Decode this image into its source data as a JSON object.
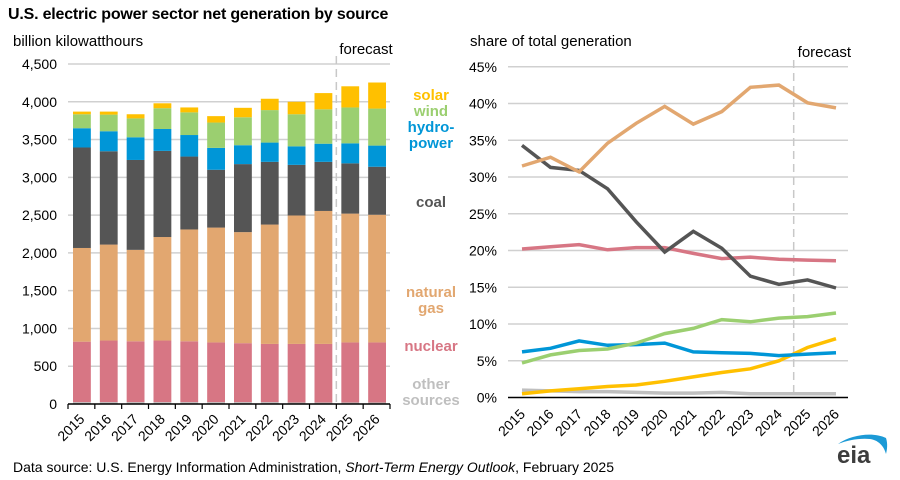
{
  "title": "U.S. electric power sector net generation by source",
  "footer": {
    "prefix": "Data source: U.S. Energy Information Administration, ",
    "italic": "Short-Term Energy Outlook",
    "suffix": ", February 2025"
  },
  "logo_text": "eia",
  "colors": {
    "solar": "#FFC000",
    "wind": "#9BCF70",
    "hydropower": "#0096D7",
    "coal": "#555555",
    "natural_gas": "#E2A770",
    "nuclear": "#D77684",
    "other": "#BFBFBF"
  },
  "legend": [
    {
      "key": "solar",
      "lines": [
        "solar"
      ]
    },
    {
      "key": "wind",
      "lines": [
        "wind"
      ]
    },
    {
      "key": "hydropower",
      "lines": [
        "hydro-",
        "power"
      ]
    },
    {
      "key": "coal",
      "lines": [
        "coal"
      ]
    },
    {
      "key": "natural_gas",
      "lines": [
        "natural",
        "gas"
      ]
    },
    {
      "key": "nuclear",
      "lines": [
        "nuclear"
      ]
    },
    {
      "key": "other",
      "lines": [
        "other",
        "sources"
      ]
    }
  ],
  "chart_data": [
    {
      "type": "bar",
      "stacked": true,
      "title": "U.S. electric power sector net generation by source",
      "ylabel": "billion kilowatthours",
      "xlabel": "",
      "ylim": [
        0,
        4500
      ],
      "yticks": [
        0,
        500,
        1000,
        1500,
        2000,
        2500,
        3000,
        3500,
        4000,
        4500
      ],
      "ytick_labels": [
        "0",
        "500",
        "1,000",
        "1,500",
        "2,000",
        "2,500",
        "3,000",
        "3,500",
        "4,000",
        "4,500"
      ],
      "grid": true,
      "annotation": "forecast",
      "forecast_start": "2025",
      "categories": [
        "2015",
        "2016",
        "2017",
        "2018",
        "2019",
        "2020",
        "2021",
        "2022",
        "2023",
        "2024",
        "2025",
        "2026"
      ],
      "series": [
        {
          "name": "other sources",
          "key": "other",
          "values": [
            25,
            25,
            25,
            25,
            25,
            25,
            25,
            25,
            20,
            20,
            20,
            20
          ]
        },
        {
          "name": "nuclear",
          "key": "nuclear",
          "values": [
            800,
            815,
            805,
            815,
            805,
            790,
            780,
            770,
            775,
            775,
            795,
            795
          ]
        },
        {
          "name": "natural gas",
          "key": "natural_gas",
          "values": [
            1240,
            1270,
            1210,
            1370,
            1480,
            1520,
            1470,
            1580,
            1700,
            1760,
            1705,
            1690
          ]
        },
        {
          "name": "coal",
          "key": "coal",
          "values": [
            1330,
            1235,
            1190,
            1140,
            965,
            765,
            900,
            830,
            670,
            650,
            665,
            635
          ]
        },
        {
          "name": "hydropower",
          "key": "hydropower",
          "values": [
            255,
            265,
            300,
            290,
            285,
            290,
            250,
            255,
            245,
            240,
            265,
            280
          ]
        },
        {
          "name": "wind",
          "key": "wind",
          "values": [
            185,
            220,
            250,
            275,
            300,
            335,
            370,
            430,
            425,
            455,
            475,
            490
          ]
        },
        {
          "name": "solar",
          "key": "solar",
          "values": [
            35,
            40,
            55,
            65,
            65,
            85,
            125,
            150,
            165,
            215,
            280,
            345
          ]
        }
      ]
    },
    {
      "type": "line",
      "ylabel": "share of total generation",
      "xlabel": "",
      "ylim": [
        0,
        45
      ],
      "yticks": [
        0,
        5,
        10,
        15,
        20,
        25,
        30,
        35,
        40,
        45
      ],
      "ytick_labels": [
        "0%",
        "5%",
        "10%",
        "15%",
        "20%",
        "25%",
        "30%",
        "35%",
        "40%",
        "45%"
      ],
      "grid": true,
      "annotation": "forecast",
      "forecast_start": "2025",
      "categories": [
        "2015",
        "2016",
        "2017",
        "2018",
        "2019",
        "2020",
        "2021",
        "2022",
        "2023",
        "2024",
        "2025",
        "2026"
      ],
      "series": [
        {
          "name": "other sources",
          "key": "other",
          "values": [
            1.0,
            0.9,
            0.8,
            0.8,
            0.7,
            0.6,
            0.6,
            0.7,
            0.5,
            0.5,
            0.5,
            0.5
          ]
        },
        {
          "name": "solar",
          "key": "solar",
          "values": [
            0.5,
            0.9,
            1.2,
            1.5,
            1.7,
            2.2,
            2.8,
            3.4,
            3.9,
            5.0,
            6.8,
            8.0
          ]
        },
        {
          "name": "hydropower",
          "key": "hydropower",
          "values": [
            6.2,
            6.7,
            7.7,
            7.1,
            7.2,
            7.4,
            6.2,
            6.1,
            6.0,
            5.7,
            5.9,
            6.1
          ]
        },
        {
          "name": "wind",
          "key": "wind",
          "values": [
            4.7,
            5.8,
            6.4,
            6.6,
            7.4,
            8.7,
            9.4,
            10.6,
            10.3,
            10.8,
            11.0,
            11.5
          ]
        },
        {
          "name": "nuclear",
          "key": "nuclear",
          "values": [
            20.2,
            20.5,
            20.8,
            20.1,
            20.4,
            20.4,
            19.6,
            18.9,
            19.1,
            18.8,
            18.7,
            18.6
          ]
        },
        {
          "name": "coal",
          "key": "coal",
          "values": [
            34.3,
            31.3,
            30.9,
            28.4,
            23.9,
            19.8,
            22.6,
            20.3,
            16.5,
            15.4,
            16.0,
            14.9
          ]
        },
        {
          "name": "natural gas",
          "key": "natural_gas",
          "values": [
            31.5,
            32.7,
            30.7,
            34.6,
            37.3,
            39.6,
            37.2,
            38.9,
            42.2,
            42.5,
            40.1,
            39.4
          ]
        }
      ]
    }
  ]
}
